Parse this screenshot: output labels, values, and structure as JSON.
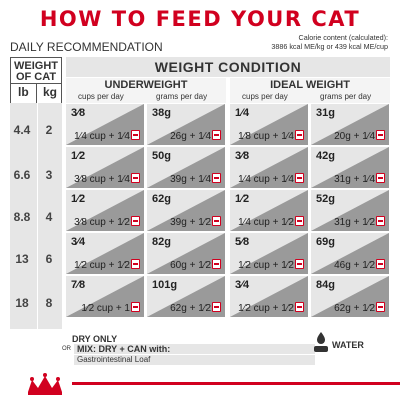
{
  "title": "HOW TO FEED YOUR CAT",
  "daily_recommendation": "DAILY RECOMMENDATION",
  "calorie": {
    "line1": "Calorie content (calculated):",
    "line2": "3886 kcal ME/kg or 439 kcal ME/cup"
  },
  "weight_header": {
    "line1": "WEIGHT",
    "line2": "OF CAT",
    "unit_lb": "lb",
    "unit_kg": "kg"
  },
  "weights": [
    {
      "lb": "4.4",
      "kg": "2"
    },
    {
      "lb": "6.6",
      "kg": "3"
    },
    {
      "lb": "8.8",
      "kg": "4"
    },
    {
      "lb": "13",
      "kg": "6"
    },
    {
      "lb": "18",
      "kg": "8"
    }
  ],
  "weight_condition": "WEIGHT CONDITION",
  "groups": {
    "underweight": "UNDERWEIGHT",
    "ideal": "IDEAL WEIGHT",
    "cups_per_day": "cups per day",
    "grams_per_day": "grams per day"
  },
  "rows": [
    {
      "uw_cups_top": "3⁄8",
      "uw_cups_bot": "1⁄4 cup + 1⁄4",
      "uw_grams_top": "38g",
      "uw_grams_bot": "26g + 1⁄4",
      "id_cups_top": "1⁄4",
      "id_cups_bot": "1⁄8 cup + 1⁄4",
      "id_grams_top": "31g",
      "id_grams_bot": "20g + 1⁄4"
    },
    {
      "uw_cups_top": "1⁄2",
      "uw_cups_bot": "3⁄8 cup + 1⁄4",
      "uw_grams_top": "50g",
      "uw_grams_bot": "39g + 1⁄4",
      "id_cups_top": "3⁄8",
      "id_cups_bot": "1⁄4 cup + 1⁄4",
      "id_grams_top": "42g",
      "id_grams_bot": "31g + 1⁄4"
    },
    {
      "uw_cups_top": "1⁄2",
      "uw_cups_bot": "3⁄8 cup + 1⁄2",
      "uw_grams_top": "62g",
      "uw_grams_bot": "39g + 1⁄2",
      "id_cups_top": "1⁄2",
      "id_cups_bot": "1⁄4 cup + 1⁄2",
      "id_grams_top": "52g",
      "id_grams_bot": "31g + 1⁄2"
    },
    {
      "uw_cups_top": "3⁄4",
      "uw_cups_bot": "1⁄2 cup + 1⁄2",
      "uw_grams_top": "82g",
      "uw_grams_bot": "60g + 1⁄2",
      "id_cups_top": "5⁄8",
      "id_cups_bot": "1⁄2 cup + 1⁄2",
      "id_grams_top": "69g",
      "id_grams_bot": "46g + 1⁄2"
    },
    {
      "uw_cups_top": "7⁄8",
      "uw_cups_bot": "1⁄2 cup + 1",
      "uw_grams_top": "101g",
      "uw_grams_bot": "62g + 1⁄2",
      "id_cups_top": "3⁄4",
      "id_cups_bot": "1⁄2 cup + 1⁄2",
      "id_grams_top": "84g",
      "id_grams_bot": "62g + 1⁄2"
    }
  ],
  "legend": {
    "dry_only": "DRY ONLY",
    "or": "OR",
    "mix": "MIX: DRY + CAN with:",
    "gi_loaf": "Gastrointestinal Loaf"
  },
  "water": "WATER",
  "icons": {
    "can": "wet-food-can-icon",
    "water": "water-bowl-icon",
    "logo": "royal-canin-crown-logo"
  },
  "colors": {
    "brand_red": "#d1001f",
    "dry_cell": "#e6e6e6",
    "mix_cell": "#9a9a9a"
  }
}
